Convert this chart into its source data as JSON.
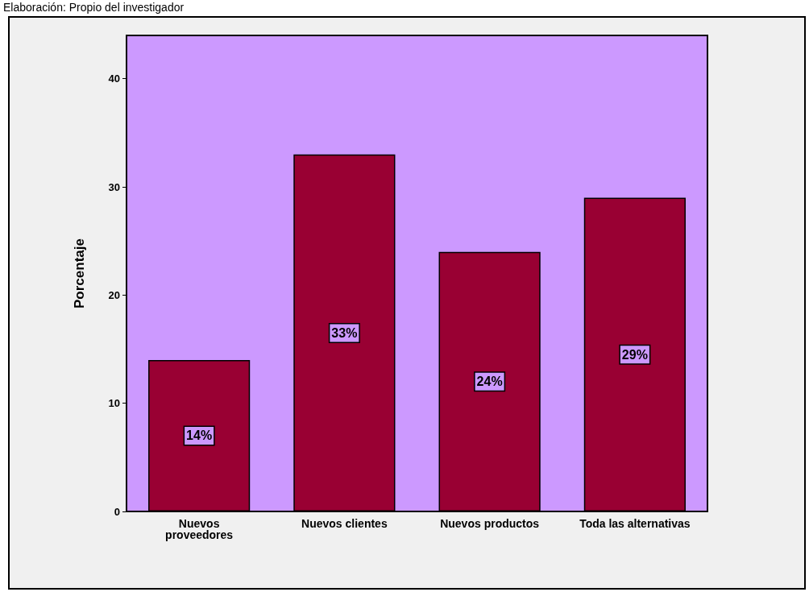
{
  "chart_data": {
    "type": "bar",
    "categories": [
      "Nuevos\nproveedores",
      "Nuevos clientes",
      "Nuevos productos",
      "Toda las alternativas"
    ],
    "values": [
      14,
      33,
      24,
      29
    ],
    "value_labels": [
      "14%",
      "33%",
      "24%",
      "29%"
    ],
    "color": "#990033",
    "ylabel": "Porcentaje",
    "ylim": [
      0,
      44
    ],
    "yticks": [
      0,
      10,
      20,
      30,
      40
    ],
    "grid": false,
    "annotations": [
      "Elaboración: Propio del investigador"
    ]
  }
}
